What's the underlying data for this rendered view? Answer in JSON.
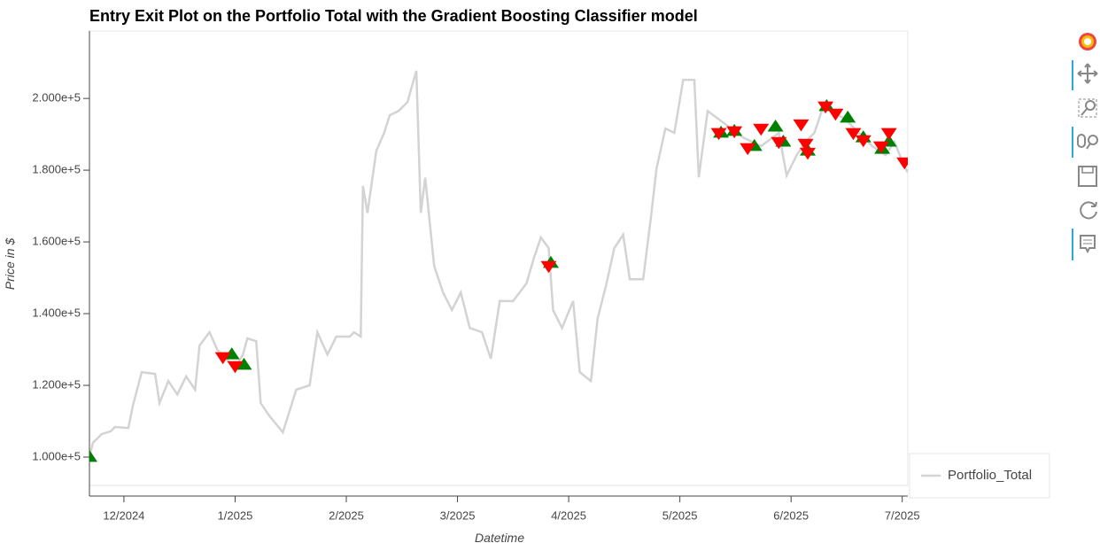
{
  "chart_data": {
    "type": "line",
    "title": "Entry Exit Plot on the Portfolio Total with the Gradient Boosting Classifier model",
    "xlabel": "Datetime",
    "ylabel": "Price in $",
    "xlim": [
      -0.31,
      7.05
    ],
    "ylim": [
      92100,
      218800
    ],
    "xticks": [
      {
        "value": 0,
        "label": "12/2024"
      },
      {
        "value": 1,
        "label": "1/2025"
      },
      {
        "value": 2,
        "label": "2/2025"
      },
      {
        "value": 3,
        "label": "3/2025"
      },
      {
        "value": 4,
        "label": "4/2025"
      },
      {
        "value": 5,
        "label": "5/2025"
      },
      {
        "value": 6,
        "label": "6/2025"
      },
      {
        "value": 7,
        "label": "7/2025"
      }
    ],
    "yticks": [
      {
        "value": 100000,
        "label": "1.000e+5"
      },
      {
        "value": 120000,
        "label": "1.200e+5"
      },
      {
        "value": 140000,
        "label": "1.400e+5"
      },
      {
        "value": 160000,
        "label": "1.600e+5"
      },
      {
        "value": 180000,
        "label": "1.800e+5"
      },
      {
        "value": 200000,
        "label": "2.000e+5"
      }
    ],
    "grid": false,
    "legend": "right",
    "series": [
      {
        "name": "Portfolio_Total",
        "color": "#d3d3d3",
        "x": [
          -0.31,
          -0.28,
          -0.2,
          -0.12,
          -0.08,
          0.04,
          0.08,
          0.16,
          0.28,
          0.32,
          0.4,
          0.48,
          0.56,
          0.64,
          0.68,
          0.77,
          0.84,
          0.92,
          1.0,
          1.07,
          1.11,
          1.19,
          1.23,
          1.31,
          1.43,
          1.55,
          1.67,
          1.74,
          1.83,
          1.91,
          2.03,
          2.07,
          2.13,
          2.15,
          2.19,
          2.27,
          2.34,
          2.39,
          2.47,
          2.55,
          2.63,
          2.67,
          2.71,
          2.79,
          2.87,
          2.95,
          3.03,
          3.11,
          3.22,
          3.3,
          3.38,
          3.5,
          3.62,
          3.69,
          3.75,
          3.82,
          3.86,
          3.94,
          4.04,
          4.1,
          4.2,
          4.26,
          4.34,
          4.41,
          4.49,
          4.55,
          4.67,
          4.74,
          4.79,
          4.87,
          4.95,
          5.03,
          5.13,
          5.17,
          5.25,
          5.41,
          5.57,
          5.73,
          5.89,
          5.96,
          6.05,
          6.13,
          6.21,
          6.29,
          6.37,
          6.49,
          6.61,
          6.73,
          6.85,
          6.93,
          7.01,
          7.05
        ],
        "values": [
          100000,
          103950,
          106400,
          107200,
          108400,
          108100,
          114300,
          123700,
          123200,
          115100,
          121200,
          117500,
          122500,
          118800,
          131100,
          134800,
          129900,
          127400,
          124900,
          128600,
          133100,
          132300,
          115100,
          111400,
          106900,
          118800,
          120000,
          134800,
          128600,
          133600,
          133600,
          134800,
          133600,
          175600,
          168100,
          185400,
          190400,
          195300,
          196500,
          199000,
          207700,
          168100,
          177900,
          153300,
          145900,
          141000,
          145900,
          136000,
          134800,
          127400,
          143500,
          143500,
          148400,
          155800,
          161200,
          158300,
          141000,
          136000,
          143500,
          123700,
          121200,
          138500,
          148400,
          158300,
          162000,
          149600,
          149600,
          166900,
          180500,
          191600,
          190400,
          205200,
          205200,
          178000,
          196500,
          192800,
          189100,
          186700,
          190400,
          178500,
          184200,
          187900,
          190400,
          197800,
          196500,
          194100,
          190400,
          186700,
          184200,
          187900,
          181700,
          179300
        ]
      },
      {
        "color": "#008000",
        "marker": "triangle",
        "x": [
          -0.31,
          0.97,
          1.08,
          3.84,
          5.37,
          5.49,
          5.67,
          5.86,
          5.93,
          6.15,
          6.32,
          6.51,
          6.65,
          6.82,
          6.88
        ],
        "values": [
          100000,
          128600,
          125700,
          154100,
          190400,
          190900,
          186700,
          192100,
          187900,
          185400,
          197800,
          194600,
          189100,
          185900,
          187900
        ]
      },
      {
        "color": "#ff0000",
        "marker": "inverted_triangle",
        "x": [
          0.89,
          1.0,
          3.82,
          5.35,
          5.49,
          5.61,
          5.73,
          5.89,
          6.09,
          6.13,
          6.15,
          6.31,
          6.4,
          6.56,
          6.65,
          6.81,
          6.88,
          7.02
        ],
        "values": [
          127900,
          125400,
          153300,
          190400,
          190900,
          186200,
          191600,
          187900,
          192800,
          187400,
          184900,
          197800,
          195800,
          190400,
          188400,
          186700,
          190400,
          182200
        ]
      }
    ]
  }
}
